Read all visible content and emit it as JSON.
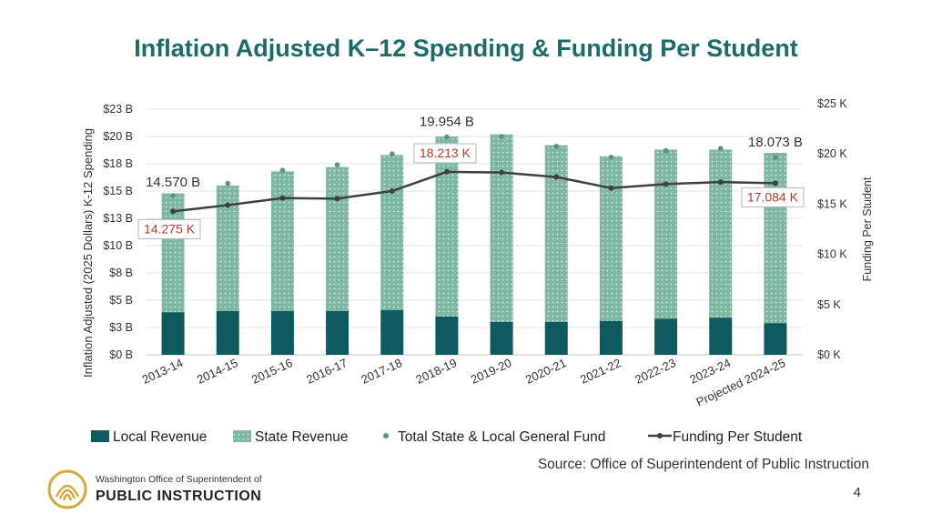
{
  "title": "Inflation Adjusted K–12 Spending & Funding Per Student",
  "source": "Source: Office of Superintendent of Public Instruction",
  "page_number": "4",
  "logo": {
    "line1": "Washington Office of Superintendent of",
    "line2": "PUBLIC INSTRUCTION"
  },
  "colors": {
    "local": "#0e5a5e",
    "state": "#7fb7a5",
    "dot": "#5f8f85",
    "line": "#404040",
    "label_red": "#c0392b",
    "title": "#1b6b6b"
  },
  "chart_data": {
    "type": "bar",
    "categories": [
      "2013-14",
      "2014-15",
      "2015-16",
      "2016-17",
      "2017-18",
      "2018-19",
      "2019-20",
      "2020-21",
      "2021-22",
      "2022-23",
      "2023-24",
      "Projected 2024-25"
    ],
    "series": [
      {
        "name": "Local Revenue",
        "type": "bar",
        "stacked": true,
        "axis": "left",
        "values": [
          3.9,
          4.0,
          4.0,
          4.0,
          4.1,
          3.5,
          3.0,
          3.0,
          3.1,
          3.3,
          3.4,
          2.9
        ]
      },
      {
        "name": "State Revenue",
        "type": "bar",
        "stacked": true,
        "axis": "left",
        "values": [
          10.9,
          11.5,
          12.8,
          13.2,
          14.2,
          16.5,
          17.2,
          16.2,
          15.1,
          15.5,
          15.4,
          15.6
        ]
      },
      {
        "name": "Total State & Local General Fund",
        "type": "scatter",
        "axis": "left",
        "values": [
          14.57,
          15.7,
          16.9,
          17.4,
          18.4,
          19.954,
          20.0,
          19.1,
          18.1,
          18.7,
          18.9,
          18.073
        ]
      },
      {
        "name": "Funding Per Student",
        "type": "line",
        "axis": "right",
        "values": [
          14.275,
          14.9,
          15.6,
          15.55,
          16.3,
          18.213,
          18.15,
          17.7,
          16.6,
          17.0,
          17.2,
          17.084
        ]
      }
    ],
    "left_axis": {
      "label": "Inflation Adjusted (2025 Dollars) K-12 Spending",
      "ylim": [
        0,
        23
      ],
      "ticks": [
        0,
        2.5,
        5,
        7.5,
        10,
        12.5,
        15,
        17.5,
        20,
        22.5
      ],
      "tick_labels": [
        "$0 B",
        "$3 B",
        "$5 B",
        "$8 B",
        "$10 B",
        "$13 B",
        "$15 B",
        "$18 B",
        "$20 B",
        "$23 B"
      ]
    },
    "right_axis": {
      "label": "Funding Per Student",
      "ylim": [
        0,
        25
      ],
      "ticks": [
        0,
        5,
        10,
        15,
        20,
        25
      ],
      "tick_labels": [
        "$0 K",
        "$5 K",
        "$10 K",
        "$15 K",
        "$20 K",
        "$25 K"
      ]
    },
    "annotations": [
      {
        "text": "14.570 B",
        "index": 0,
        "series": "Total State & Local General Fund",
        "style": "plain"
      },
      {
        "text": "19.954 B",
        "index": 5,
        "series": "Total State & Local General Fund",
        "style": "plain"
      },
      {
        "text": "18.073 B",
        "index": 11,
        "series": "Total State & Local General Fund",
        "style": "plain"
      },
      {
        "text": "14.275 K",
        "index": 0,
        "series": "Funding Per Student",
        "style": "boxed"
      },
      {
        "text": "18.213 K",
        "index": 5,
        "series": "Funding Per Student",
        "style": "boxed"
      },
      {
        "text": "17.084 K",
        "index": 11,
        "series": "Funding Per Student",
        "style": "boxed"
      }
    ],
    "legend": {
      "position": "bottom",
      "items": [
        "Local Revenue",
        "State Revenue",
        "Total State & Local General Fund",
        "Funding Per Student"
      ]
    },
    "grid": true
  }
}
